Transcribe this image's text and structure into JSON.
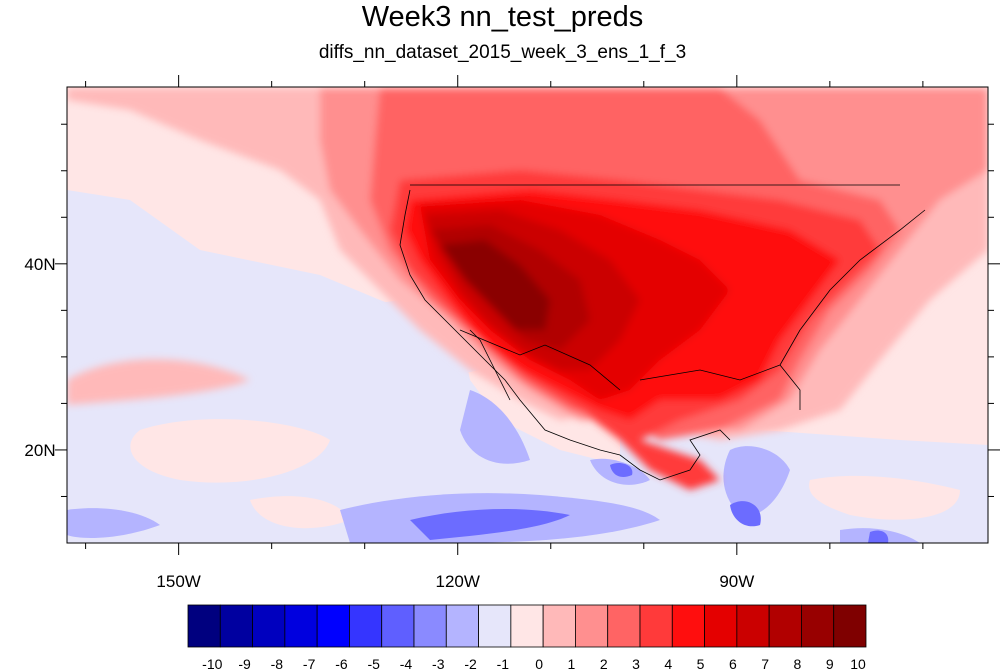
{
  "title": "Week3 nn_test_preds",
  "subtitle": "diffs_nn_dataset_2015_week_3_ens_1_f_3",
  "map": {
    "projection": "cylindrical equidistant",
    "lon_range": [
      -162,
      -63
    ],
    "lat_range": [
      10,
      59
    ],
    "lon_ticks": [
      {
        "value": -150,
        "label": "150W"
      },
      {
        "value": -120,
        "label": "120W"
      },
      {
        "value": -90,
        "label": "90W"
      }
    ],
    "lat_ticks": [
      {
        "value": 40,
        "label": "40N"
      },
      {
        "value": 20,
        "label": "20N"
      }
    ],
    "field_description": "difference field, strongly positive over western/central United States and Mexico, weakly negative over eastern Pacific"
  },
  "colorbar": {
    "labels": [
      "-10",
      "-9",
      "-8",
      "-7",
      "-6",
      "-5",
      "-4",
      "-3",
      "-2",
      "-1",
      "0",
      "1",
      "2",
      "3",
      "4",
      "5",
      "6",
      "7",
      "8",
      "9",
      "10"
    ],
    "colors": [
      "#00007f",
      "#0000a0",
      "#0000bf",
      "#0000df",
      "#0000ff",
      "#3535ff",
      "#5f5fff",
      "#8a8aff",
      "#b4b4ff",
      "#e6e6fa",
      "#ffe6e6",
      "#ffb9b9",
      "#ff8f8f",
      "#ff6464",
      "#ff3a3a",
      "#ff0e0e",
      "#e40000",
      "#cb0000",
      "#b10000",
      "#980000",
      "#7f0000"
    ]
  }
}
